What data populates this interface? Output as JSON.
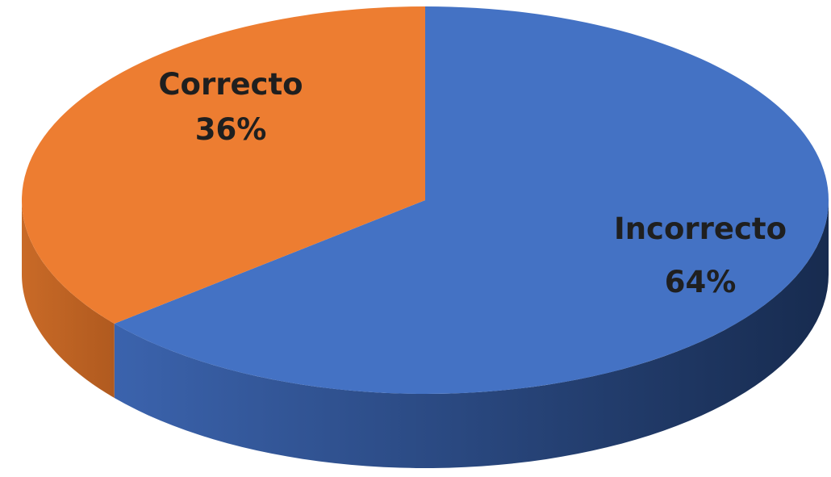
{
  "chart_data": {
    "type": "pie",
    "style": "3d",
    "start_angle": "12 o'clock",
    "direction": "clockwise",
    "slices": [
      {
        "label": "Incorrecto",
        "percent_label": "64%",
        "value": 64,
        "color": "#4472c4",
        "side_color": "#2e4d84"
      },
      {
        "label": "Correcto",
        "percent_label": "36%",
        "value": 36,
        "color": "#ed7d31",
        "side_color": "#b85f22"
      }
    ],
    "legend": "none",
    "data_labels": "on slices"
  }
}
